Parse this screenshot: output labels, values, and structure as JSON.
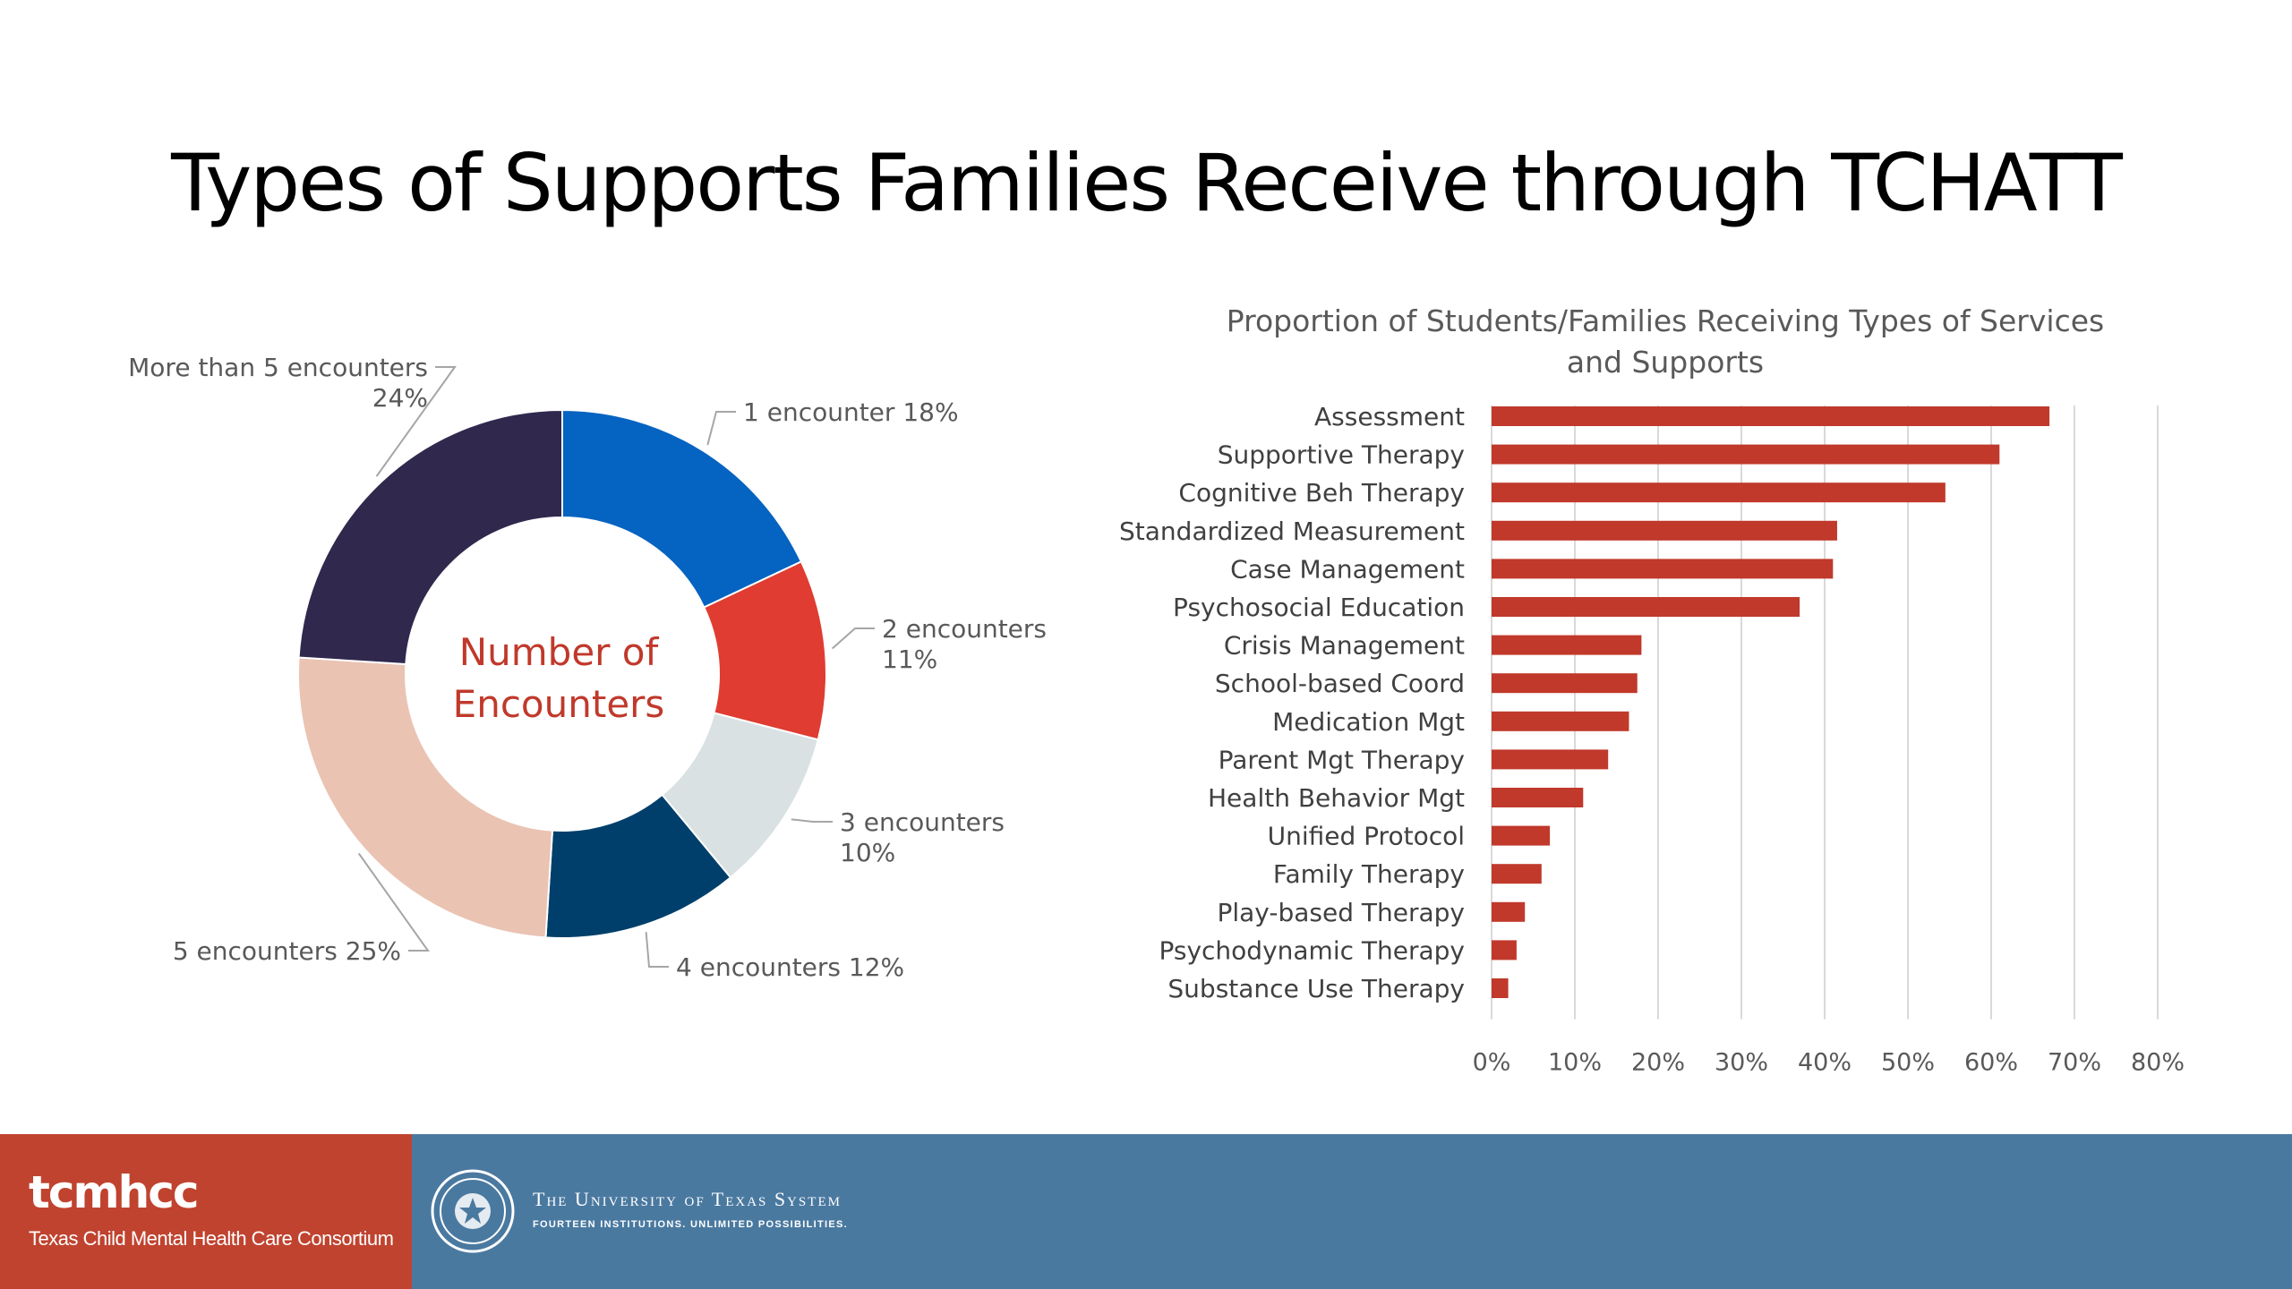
{
  "title": "Types of Supports Families Receive through TCHATT",
  "footer": {
    "brand": "tcmhcc",
    "brand_sub": "Texas Child Mental Health Care Consortium",
    "ut_name": "The University of Texas System",
    "ut_tagline": "FOURTEEN INSTITUTIONS. UNLIMITED POSSIBILITIES.",
    "left_color": "#c0432f",
    "bar_color": "#4a79a0"
  },
  "chart_data": [
    {
      "type": "pie",
      "variant": "donut",
      "title": "",
      "center_label": [
        "Number of",
        "Encounters"
      ],
      "slices": [
        {
          "label": "1 encounter",
          "value": 18,
          "display": "1 encounter 18%",
          "color": "#0563c1"
        },
        {
          "label": "2 encounters",
          "value": 11,
          "display": [
            "2 encounters",
            "11%"
          ],
          "color": "#e03c31"
        },
        {
          "label": "3 encounters",
          "value": 10,
          "display": [
            "3 encounters",
            "10%"
          ],
          "color": "#d9e1e2"
        },
        {
          "label": "4 encounters",
          "value": 12,
          "display": "4 encounters 12%",
          "color": "#003f6b"
        },
        {
          "label": "5 encounters",
          "value": 25,
          "display": "5 encounters 25%",
          "color": "#eac3b3"
        },
        {
          "label": "More than 5 encounters",
          "value": 24,
          "display": [
            "More than 5 encounters",
            "24%"
          ],
          "color": "#30284d"
        }
      ]
    },
    {
      "type": "bar",
      "orientation": "horizontal",
      "title": [
        "Proportion of Students/Families Receiving Types of Services",
        "and Supports"
      ],
      "xlabel": "",
      "ylabel": "",
      "categories": [
        "Assessment",
        "Supportive Therapy",
        "Cognitive Beh Therapy",
        "Standardized Measurement",
        "Case Management",
        "Psychosocial Education",
        "Crisis Management",
        "School-based Coord",
        "Medication Mgt",
        "Parent Mgt Therapy",
        "Health Behavior Mgt",
        "Unified Protocol",
        "Family Therapy",
        "Play-based Therapy",
        "Psychodynamic Therapy",
        "Substance Use Therapy"
      ],
      "values": [
        67,
        61,
        54.5,
        41.5,
        41,
        37,
        18,
        17.5,
        16.5,
        14,
        11,
        7,
        6,
        4,
        3,
        2
      ],
      "xlim": [
        0,
        80
      ],
      "xticks": [
        "0%",
        "10%",
        "20%",
        "30%",
        "40%",
        "50%",
        "60%",
        "70%",
        "80%"
      ],
      "grid": "vertical",
      "bar_color": "#c0392b"
    }
  ]
}
